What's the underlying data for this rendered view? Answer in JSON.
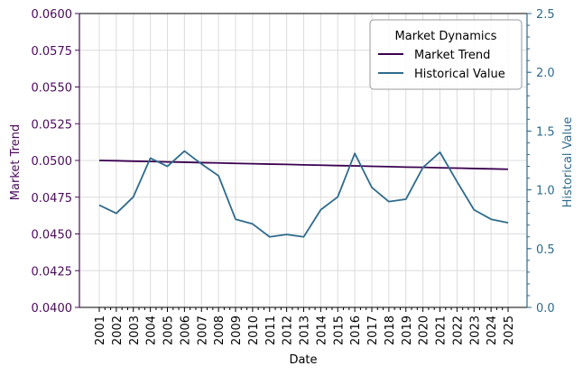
{
  "colors": {
    "market_trend": "#3b0050",
    "historical_value": "#2f6b8c",
    "grid": "#dcdcdc",
    "left_axis": "#4b0a5c",
    "right_axis": "#2f6b8c"
  },
  "chart_data": {
    "type": "line",
    "xlabel": "Date",
    "ylabel_left": "Market Trend",
    "ylabel_right": "Historical Value",
    "legend_title": "Market Dynamics",
    "legend_position": "top-right",
    "grid": true,
    "ylim_left": [
      0.04,
      0.06
    ],
    "ylim_right": [
      0.0,
      2.5
    ],
    "yticks_left": [
      "0.0400",
      "0.0425",
      "0.0450",
      "0.0475",
      "0.0500",
      "0.0525",
      "0.0550",
      "0.0575",
      "0.0600"
    ],
    "yticks_right": [
      "0.0",
      "0.5",
      "1.0",
      "1.5",
      "2.0",
      "2.5"
    ],
    "categories": [
      "2001",
      "2002",
      "2003",
      "2004",
      "2005",
      "2006",
      "2007",
      "2008",
      "2009",
      "2010",
      "2011",
      "2012",
      "2013",
      "2014",
      "2015",
      "2016",
      "2017",
      "2018",
      "2019",
      "2020",
      "2021",
      "2022",
      "2023",
      "2024",
      "2025"
    ],
    "series": [
      {
        "name": "Market Trend",
        "axis": "left",
        "values": [
          0.05,
          0.04998,
          0.04995,
          0.04993,
          0.0499,
          0.04988,
          0.04985,
          0.04983,
          0.0498,
          0.04978,
          0.04975,
          0.04973,
          0.0497,
          0.04968,
          0.04965,
          0.04963,
          0.0496,
          0.04958,
          0.04955,
          0.04953,
          0.0495,
          0.04948,
          0.04945,
          0.04943,
          0.0494
        ]
      },
      {
        "name": "Historical Value",
        "axis": "right",
        "values": [
          0.87,
          0.8,
          0.94,
          1.27,
          1.2,
          1.33,
          1.22,
          1.12,
          0.75,
          0.71,
          0.6,
          0.62,
          0.6,
          0.83,
          0.94,
          1.31,
          1.02,
          0.9,
          0.92,
          1.19,
          1.32,
          1.07,
          0.83,
          0.75,
          0.72
        ]
      }
    ]
  }
}
